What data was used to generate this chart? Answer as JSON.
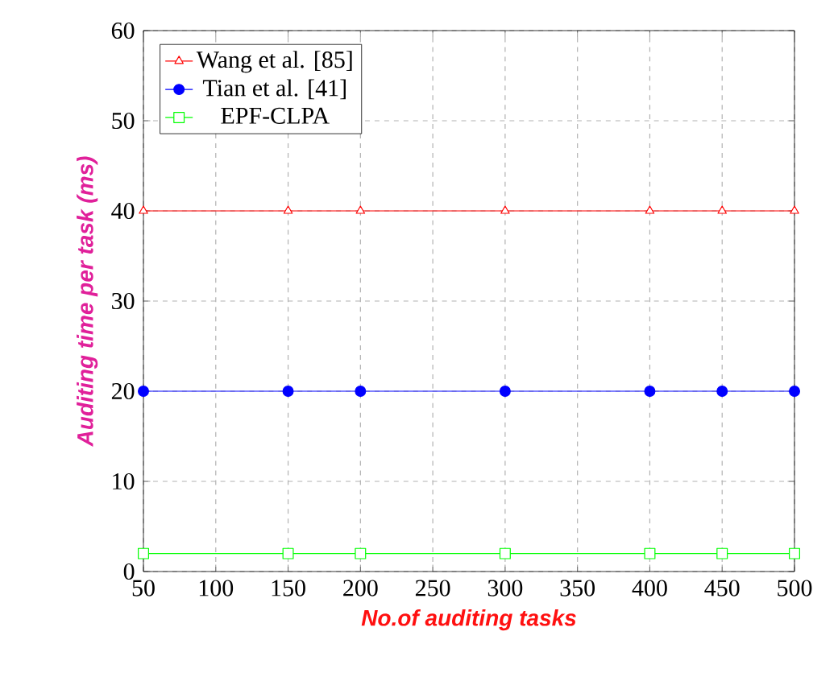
{
  "chart_data": {
    "type": "line",
    "xlabel": "No.of auditing tasks",
    "ylabel": "Auditing time per task (ms)",
    "x": [
      50,
      150,
      200,
      300,
      400,
      450,
      500
    ],
    "series": [
      {
        "name": "Wang et al. [85]",
        "color": "#ff0000",
        "marker": "triangle",
        "values": [
          40,
          40,
          40,
          40,
          40,
          40,
          40
        ]
      },
      {
        "name": "Tian et al. [41]",
        "color": "#0000ff",
        "marker": "circle",
        "values": [
          20,
          20,
          20,
          20,
          20,
          20,
          20
        ]
      },
      {
        "name": "EPF-CLPA",
        "color": "#00ff00",
        "marker": "square",
        "values": [
          2,
          2,
          2,
          2,
          2,
          2,
          2
        ]
      }
    ],
    "xlim": [
      50,
      500
    ],
    "ylim": [
      0,
      60
    ],
    "xticks": [
      50,
      100,
      150,
      200,
      250,
      300,
      350,
      400,
      450,
      500
    ],
    "yticks": [
      0,
      10,
      20,
      30,
      40,
      50,
      60
    ],
    "grid": true,
    "legend": "top left",
    "line_style": "solid"
  }
}
